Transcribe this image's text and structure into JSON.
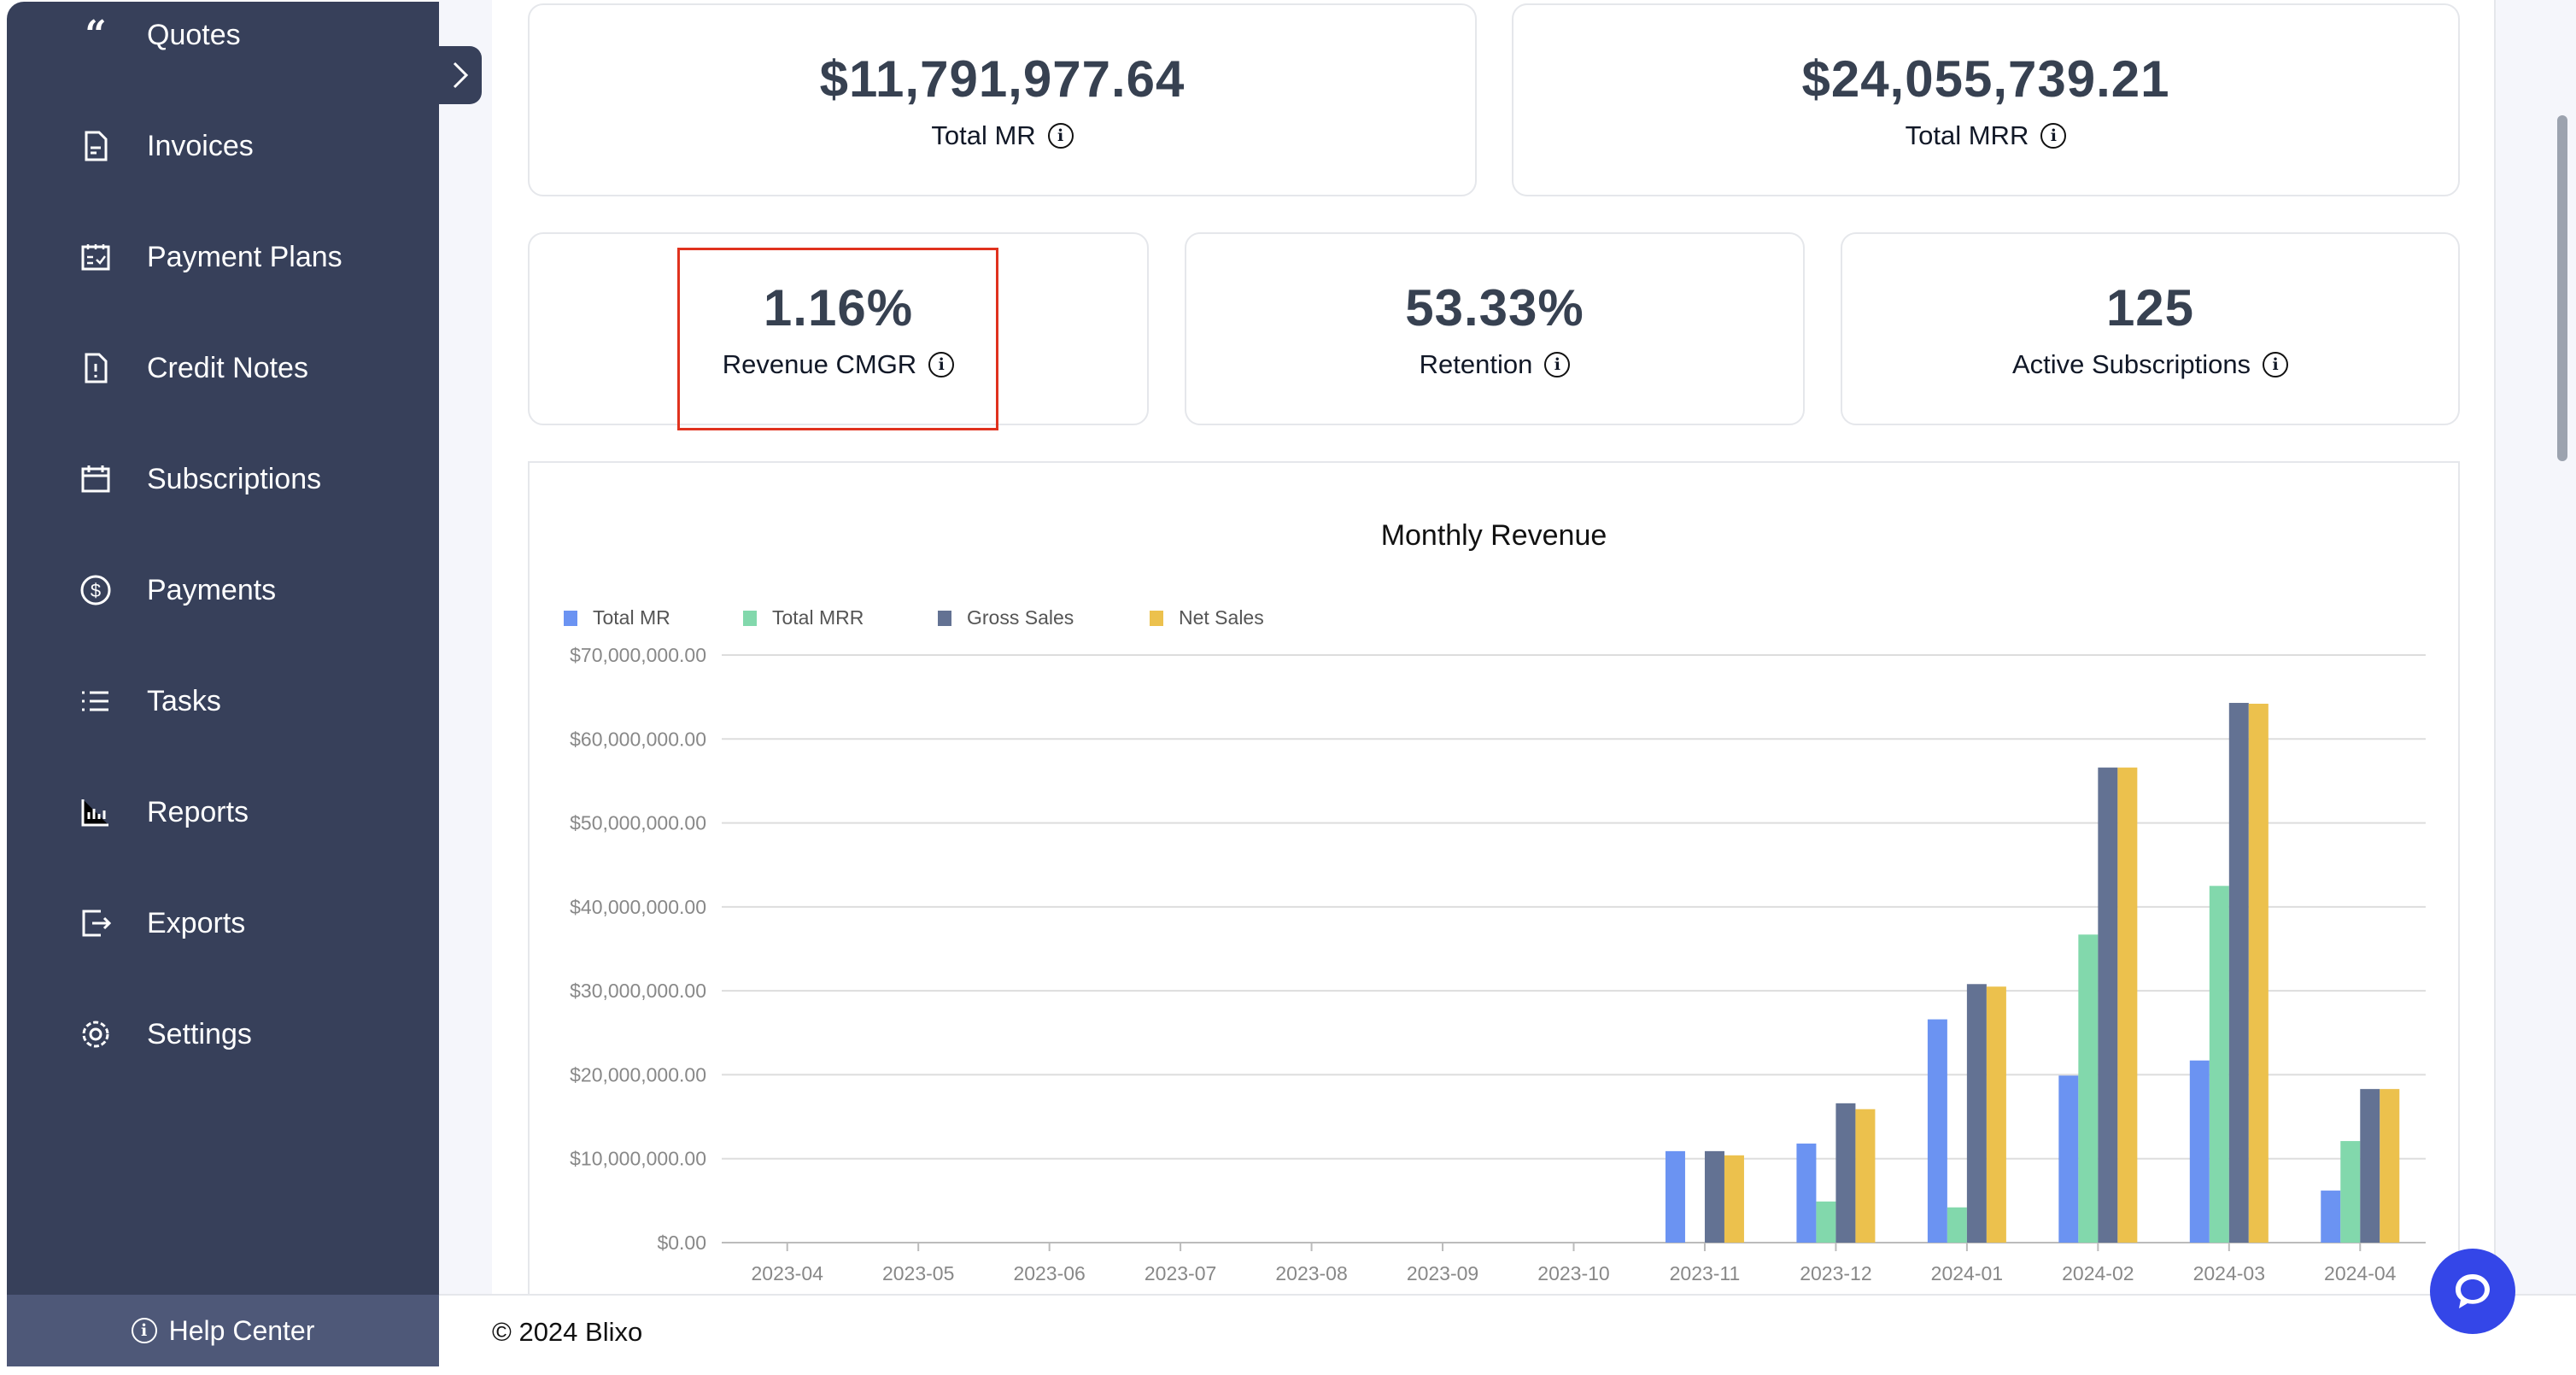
{
  "sidebar": {
    "items": [
      {
        "label": "Quotes",
        "icon": "quote-icon"
      },
      {
        "label": "Invoices",
        "icon": "document-icon"
      },
      {
        "label": "Payment Plans",
        "icon": "calendar-check-icon"
      },
      {
        "label": "Credit Notes",
        "icon": "document-alert-icon"
      },
      {
        "label": "Subscriptions",
        "icon": "calendar-icon"
      },
      {
        "label": "Payments",
        "icon": "dollar-circle-icon"
      },
      {
        "label": "Tasks",
        "icon": "list-icon"
      },
      {
        "label": "Reports",
        "icon": "bar-chart-icon"
      },
      {
        "label": "Exports",
        "icon": "export-icon"
      },
      {
        "label": "Settings",
        "icon": "gear-icon"
      }
    ],
    "help": "Help Center"
  },
  "stats": {
    "total_mr": {
      "value": "$11,791,977.64",
      "label": "Total MR"
    },
    "total_mrr": {
      "value": "$24,055,739.21",
      "label": "Total MRR"
    },
    "cmgr": {
      "value": "1.16%",
      "label": "Revenue CMGR"
    },
    "retention": {
      "value": "53.33%",
      "label": "Retention"
    },
    "active_subs": {
      "value": "125",
      "label": "Active Subscriptions"
    }
  },
  "footer": {
    "copyright": "© 2024 Blixo"
  },
  "chart_data": {
    "type": "bar",
    "title": "Monthly Revenue",
    "categories": [
      "2023-04",
      "2023-05",
      "2023-06",
      "2023-07",
      "2023-08",
      "2023-09",
      "2023-10",
      "2023-11",
      "2023-12",
      "2024-01",
      "2024-02",
      "2024-03",
      "2024-04"
    ],
    "series": [
      {
        "name": "Total MR",
        "color": "#6b93f2",
        "values": [
          0,
          0,
          0,
          0,
          0,
          0,
          0,
          10.9,
          11.8,
          26.6,
          19.9,
          21.7,
          6.2
        ]
      },
      {
        "name": "Total MRR",
        "color": "#82d8ac",
        "values": [
          0,
          0,
          0,
          0,
          0,
          0,
          0,
          0,
          4.9,
          4.2,
          36.7,
          42.5,
          12.1
        ]
      },
      {
        "name": "Gross Sales",
        "color": "#637293",
        "values": [
          0,
          0,
          0,
          0,
          0,
          0,
          0,
          10.9,
          16.6,
          30.8,
          56.6,
          64.3,
          18.3
        ]
      },
      {
        "name": "Net Sales",
        "color": "#ecc14d",
        "values": [
          0,
          0,
          0,
          0,
          0,
          0,
          0,
          10.4,
          15.9,
          30.5,
          56.6,
          64.2,
          18.3
        ]
      }
    ],
    "value_unit": "millions USD",
    "yticks": [
      "$0.00",
      "$10,000,000.00",
      "$20,000,000.00",
      "$30,000,000.00",
      "$40,000,000.00",
      "$50,000,000.00",
      "$60,000,000.00",
      "$70,000,000.00"
    ],
    "ylim": [
      0,
      70
    ],
    "grid": true,
    "legend": "top-left"
  }
}
